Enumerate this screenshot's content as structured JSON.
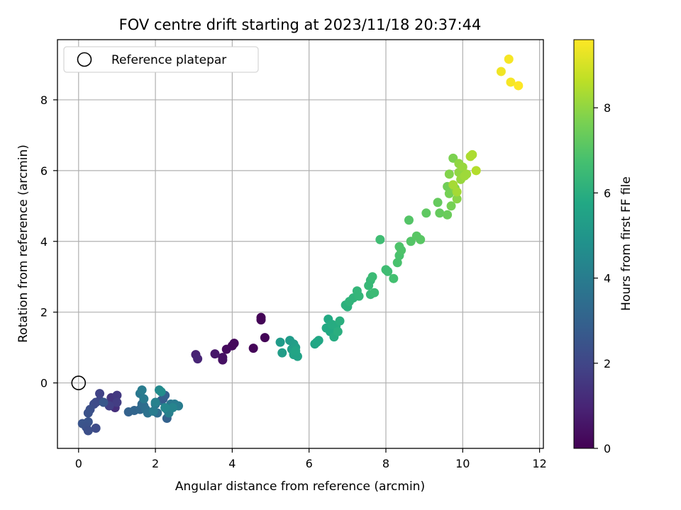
{
  "chart_data": {
    "type": "scatter",
    "title": "FOV centre drift starting at 2023/11/18 20:37:44",
    "xlabel": "Angular distance from reference (arcmin)",
    "ylabel": "Rotation from reference (arcmin)",
    "xlim": [
      -0.55,
      12.1
    ],
    "ylim": [
      -1.85,
      9.7
    ],
    "xticks": [
      "0",
      "2",
      "4",
      "6",
      "8",
      "10",
      "12"
    ],
    "xtick_values": [
      0,
      2,
      4,
      6,
      8,
      10,
      12
    ],
    "yticks": [
      "0",
      "2",
      "4",
      "6",
      "8"
    ],
    "ytick_values": [
      0,
      2,
      4,
      6,
      8
    ],
    "grid": true,
    "legend": {
      "placement": "top-left",
      "entries": [
        "Reference platepar"
      ]
    },
    "reference_point": {
      "x": 0,
      "y": 0
    },
    "colorbar": {
      "label": "Hours from first FF file",
      "range": [
        0,
        9.6
      ],
      "ticks": [
        "0",
        "2",
        "4",
        "6",
        "8"
      ],
      "tick_values": [
        0,
        2,
        4,
        6,
        8
      ],
      "colormap": [
        "#440154",
        "#482475",
        "#414487",
        "#355f8d",
        "#2a788e",
        "#21918c",
        "#22a884",
        "#44bf70",
        "#7ad151",
        "#bddf26",
        "#fde725"
      ]
    },
    "points": [
      {
        "x": 4.0,
        "y": 1.05,
        "t": 0.2
      },
      {
        "x": 4.05,
        "y": 1.12,
        "t": 0.2
      },
      {
        "x": 3.85,
        "y": 0.95,
        "t": 0.25
      },
      {
        "x": 4.55,
        "y": 0.98,
        "t": 0.15
      },
      {
        "x": 4.75,
        "y": 1.85,
        "t": 0.1
      },
      {
        "x": 4.75,
        "y": 1.78,
        "t": 0.1
      },
      {
        "x": 4.85,
        "y": 1.28,
        "t": 0.1
      },
      {
        "x": 3.75,
        "y": 0.72,
        "t": 0.4
      },
      {
        "x": 3.75,
        "y": 0.65,
        "t": 0.45
      },
      {
        "x": 3.55,
        "y": 0.82,
        "t": 0.6
      },
      {
        "x": 3.05,
        "y": 0.8,
        "t": 0.9
      },
      {
        "x": 3.1,
        "y": 0.68,
        "t": 1.0
      },
      {
        "x": 0.85,
        "y": -0.6,
        "t": 1.2
      },
      {
        "x": 0.95,
        "y": -0.7,
        "t": 1.3
      },
      {
        "x": 0.9,
        "y": -0.55,
        "t": 1.4
      },
      {
        "x": 0.85,
        "y": -0.42,
        "t": 1.5
      },
      {
        "x": 1.0,
        "y": -0.35,
        "t": 1.6
      },
      {
        "x": 1.0,
        "y": -0.55,
        "t": 1.7
      },
      {
        "x": 0.8,
        "y": -0.65,
        "t": 1.8
      },
      {
        "x": 0.55,
        "y": -0.3,
        "t": 1.9
      },
      {
        "x": 0.55,
        "y": -0.5,
        "t": 2.0
      },
      {
        "x": 0.45,
        "y": -0.55,
        "t": 2.1
      },
      {
        "x": 0.4,
        "y": -0.6,
        "t": 2.2
      },
      {
        "x": 0.3,
        "y": -0.75,
        "t": 2.3
      },
      {
        "x": 0.25,
        "y": -0.85,
        "t": 2.4
      },
      {
        "x": 0.1,
        "y": -1.15,
        "t": 2.5
      },
      {
        "x": 0.25,
        "y": -1.1,
        "t": 2.5
      },
      {
        "x": 0.2,
        "y": -1.25,
        "t": 2.4
      },
      {
        "x": 0.25,
        "y": -1.35,
        "t": 2.3
      },
      {
        "x": 0.45,
        "y": -1.28,
        "t": 2.2
      },
      {
        "x": 0.65,
        "y": -0.55,
        "t": 2.6
      },
      {
        "x": 1.3,
        "y": -0.82,
        "t": 3.0
      },
      {
        "x": 1.45,
        "y": -0.78,
        "t": 3.1
      },
      {
        "x": 1.6,
        "y": -0.75,
        "t": 3.2
      },
      {
        "x": 1.65,
        "y": -0.6,
        "t": 3.3
      },
      {
        "x": 1.7,
        "y": -0.65,
        "t": 3.4
      },
      {
        "x": 1.75,
        "y": -0.75,
        "t": 3.5
      },
      {
        "x": 1.8,
        "y": -0.85,
        "t": 3.6
      },
      {
        "x": 1.6,
        "y": -0.3,
        "t": 3.8
      },
      {
        "x": 1.65,
        "y": -0.2,
        "t": 4.0
      },
      {
        "x": 1.7,
        "y": -0.45,
        "t": 3.9
      },
      {
        "x": 2.0,
        "y": -0.6,
        "t": 3.7
      },
      {
        "x": 2.05,
        "y": -0.85,
        "t": 3.4
      },
      {
        "x": 2.15,
        "y": -0.5,
        "t": 3.5
      },
      {
        "x": 2.2,
        "y": -0.45,
        "t": 2.8
      },
      {
        "x": 2.25,
        "y": -0.35,
        "t": 2.9
      },
      {
        "x": 2.3,
        "y": -1.0,
        "t": 3.0
      },
      {
        "x": 2.3,
        "y": -0.75,
        "t": 3.6
      },
      {
        "x": 2.4,
        "y": -0.6,
        "t": 3.8
      },
      {
        "x": 2.5,
        "y": -0.6,
        "t": 3.9
      },
      {
        "x": 2.6,
        "y": -0.65,
        "t": 4.0
      },
      {
        "x": 2.1,
        "y": -0.2,
        "t": 4.5
      },
      {
        "x": 2.15,
        "y": -0.25,
        "t": 4.6
      },
      {
        "x": 2.0,
        "y": -0.55,
        "t": 4.2
      },
      {
        "x": 2.35,
        "y": -0.85,
        "t": 4.1
      },
      {
        "x": 2.45,
        "y": -0.7,
        "t": 4.3
      },
      {
        "x": 2.25,
        "y": -0.7,
        "t": 4.4
      },
      {
        "x": 1.95,
        "y": -0.8,
        "t": 4.0
      },
      {
        "x": 5.25,
        "y": 1.15,
        "t": 5.2
      },
      {
        "x": 5.3,
        "y": 0.85,
        "t": 5.3
      },
      {
        "x": 5.5,
        "y": 1.2,
        "t": 5.2
      },
      {
        "x": 5.55,
        "y": 0.95,
        "t": 5.4
      },
      {
        "x": 5.6,
        "y": 1.1,
        "t": 5.3
      },
      {
        "x": 5.6,
        "y": 0.8,
        "t": 5.5
      },
      {
        "x": 5.65,
        "y": 1.0,
        "t": 5.4
      },
      {
        "x": 5.7,
        "y": 0.75,
        "t": 5.5
      },
      {
        "x": 5.65,
        "y": 0.9,
        "t": 5.6
      },
      {
        "x": 6.15,
        "y": 1.1,
        "t": 5.6
      },
      {
        "x": 6.2,
        "y": 1.15,
        "t": 5.7
      },
      {
        "x": 6.25,
        "y": 1.2,
        "t": 5.7
      },
      {
        "x": 6.45,
        "y": 1.55,
        "t": 5.8
      },
      {
        "x": 6.5,
        "y": 1.8,
        "t": 5.8
      },
      {
        "x": 6.55,
        "y": 1.45,
        "t": 5.8
      },
      {
        "x": 6.6,
        "y": 1.65,
        "t": 5.9
      },
      {
        "x": 6.65,
        "y": 1.3,
        "t": 5.9
      },
      {
        "x": 6.7,
        "y": 1.6,
        "t": 5.9
      },
      {
        "x": 6.75,
        "y": 1.45,
        "t": 6.0
      },
      {
        "x": 6.8,
        "y": 1.75,
        "t": 6.0
      },
      {
        "x": 6.95,
        "y": 2.2,
        "t": 6.1
      },
      {
        "x": 7.0,
        "y": 2.15,
        "t": 6.1
      },
      {
        "x": 7.05,
        "y": 2.3,
        "t": 6.2
      },
      {
        "x": 7.15,
        "y": 2.4,
        "t": 6.2
      },
      {
        "x": 7.25,
        "y": 2.6,
        "t": 6.3
      },
      {
        "x": 7.3,
        "y": 2.45,
        "t": 6.3
      },
      {
        "x": 7.55,
        "y": 2.75,
        "t": 6.4
      },
      {
        "x": 7.6,
        "y": 2.9,
        "t": 6.4
      },
      {
        "x": 7.65,
        "y": 3.0,
        "t": 6.5
      },
      {
        "x": 7.6,
        "y": 2.5,
        "t": 6.4
      },
      {
        "x": 7.7,
        "y": 2.55,
        "t": 6.5
      },
      {
        "x": 7.85,
        "y": 4.05,
        "t": 6.6
      },
      {
        "x": 8.0,
        "y": 3.2,
        "t": 6.6
      },
      {
        "x": 8.05,
        "y": 3.15,
        "t": 6.6
      },
      {
        "x": 8.2,
        "y": 2.95,
        "t": 6.7
      },
      {
        "x": 8.3,
        "y": 3.4,
        "t": 6.8
      },
      {
        "x": 8.35,
        "y": 3.6,
        "t": 6.8
      },
      {
        "x": 8.35,
        "y": 3.85,
        "t": 6.9
      },
      {
        "x": 8.4,
        "y": 3.75,
        "t": 6.9
      },
      {
        "x": 8.6,
        "y": 4.6,
        "t": 7.0
      },
      {
        "x": 8.65,
        "y": 4.0,
        "t": 7.0
      },
      {
        "x": 8.8,
        "y": 4.15,
        "t": 7.1
      },
      {
        "x": 8.9,
        "y": 4.05,
        "t": 7.1
      },
      {
        "x": 9.05,
        "y": 4.8,
        "t": 7.2
      },
      {
        "x": 9.35,
        "y": 5.1,
        "t": 7.3
      },
      {
        "x": 9.4,
        "y": 4.8,
        "t": 7.3
      },
      {
        "x": 9.6,
        "y": 4.75,
        "t": 7.4
      },
      {
        "x": 9.6,
        "y": 5.55,
        "t": 7.5
      },
      {
        "x": 9.65,
        "y": 5.35,
        "t": 7.6
      },
      {
        "x": 9.7,
        "y": 5.0,
        "t": 7.6
      },
      {
        "x": 9.75,
        "y": 6.35,
        "t": 7.7
      },
      {
        "x": 9.65,
        "y": 5.9,
        "t": 7.8
      },
      {
        "x": 9.8,
        "y": 5.5,
        "t": 7.8
      },
      {
        "x": 9.85,
        "y": 5.2,
        "t": 7.9
      },
      {
        "x": 9.9,
        "y": 6.2,
        "t": 8.0
      },
      {
        "x": 9.9,
        "y": 5.95,
        "t": 8.0
      },
      {
        "x": 9.95,
        "y": 5.75,
        "t": 8.1
      },
      {
        "x": 10.0,
        "y": 6.1,
        "t": 8.1
      },
      {
        "x": 10.05,
        "y": 5.85,
        "t": 8.2
      },
      {
        "x": 10.1,
        "y": 5.9,
        "t": 8.2
      },
      {
        "x": 9.85,
        "y": 5.4,
        "t": 8.3
      },
      {
        "x": 9.75,
        "y": 5.6,
        "t": 8.3
      },
      {
        "x": 10.2,
        "y": 6.4,
        "t": 8.4
      },
      {
        "x": 10.25,
        "y": 6.45,
        "t": 8.4
      },
      {
        "x": 10.35,
        "y": 6.0,
        "t": 8.5
      },
      {
        "x": 11.0,
        "y": 8.8,
        "t": 9.4
      },
      {
        "x": 11.2,
        "y": 9.15,
        "t": 9.5
      },
      {
        "x": 11.25,
        "y": 8.5,
        "t": 9.5
      },
      {
        "x": 11.45,
        "y": 8.4,
        "t": 9.6
      }
    ]
  }
}
